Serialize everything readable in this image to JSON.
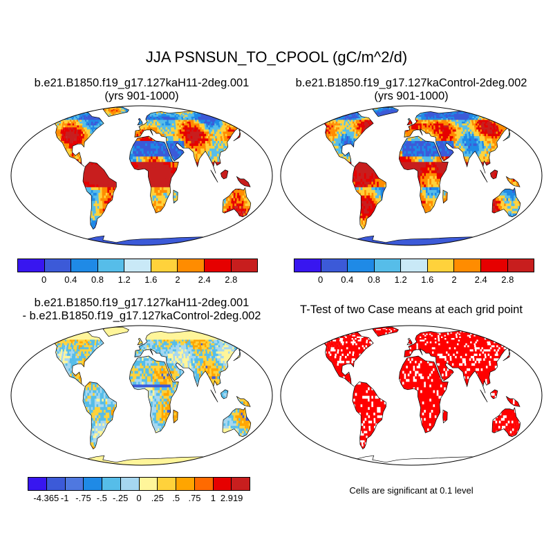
{
  "figure": {
    "title": "JJA PSNSUN_TO_CPOOL (gC/m^2/d)",
    "panels": [
      {
        "title": "b.e21.B1850.f19_g17.127kaH11-2deg.001",
        "subtitle": "(yrs 901-1000)",
        "kind": "mean",
        "ocean_color": "#ffffff",
        "antarctica_color": "#3c5ad8",
        "land_colors": [
          "#3c5ad8",
          "#1f8ae6",
          "#56bde9",
          "#ffd23b",
          "#ff8c00",
          "#e60000",
          "#c81e1e"
        ]
      },
      {
        "title": "b.e21.B1850.f19_g17.127kaControl-2deg.002",
        "subtitle": "(yrs 901-1000)",
        "kind": "mean",
        "ocean_color": "#ffffff",
        "antarctica_color": "#3c5ad8",
        "land_colors": [
          "#3c5ad8",
          "#1f8ae6",
          "#56bde9",
          "#ffd23b",
          "#ff8c00",
          "#e60000",
          "#c81e1e"
        ]
      },
      {
        "title": "b.e21.B1850.f19_g17.127kaH11-2deg.001",
        "subtitle": "- b.e21.B1850.f19_g17.127kaControl-2deg.002",
        "kind": "difference",
        "ocean_color": "#ffffff",
        "antarctica_color": "#fff59a",
        "land_colors": [
          "#fff59a",
          "#fff59a",
          "#a6d7f0",
          "#56bde9",
          "#ffd23b",
          "#ffa500",
          "#3c5ad8"
        ]
      },
      {
        "title": "T-Test of two Case means at each grid point",
        "subtitle": "",
        "kind": "significance",
        "ocean_color": "#ffffff",
        "antarctica_color": "#ffffff",
        "land_colors": [
          "#ff0000",
          "#ff0000",
          "#ff0000",
          "#ff0000",
          "#ffffff"
        ]
      }
    ],
    "colorbars": [
      {
        "colors": [
          "#3816f0",
          "#3c5ad8",
          "#1f8ae6",
          "#56bde9",
          "#c9e9f7",
          "#ffd23b",
          "#ff8c00",
          "#e60000",
          "#c81e1e"
        ],
        "labels": [
          "0",
          "0.4",
          "0.8",
          "1.2",
          "1.6",
          "2",
          "2.4",
          "2.8"
        ]
      },
      {
        "colors": [
          "#3816f0",
          "#3c5ad8",
          "#1f8ae6",
          "#56bde9",
          "#c9e9f7",
          "#ffd23b",
          "#ff8c00",
          "#e60000",
          "#c81e1e"
        ],
        "labels": [
          "0",
          "0.4",
          "0.8",
          "1.2",
          "1.6",
          "2",
          "2.4",
          "2.8"
        ]
      },
      {
        "colors": [
          "#3816f0",
          "#3c5ad8",
          "#4f78e0",
          "#1f8ae6",
          "#56bde9",
          "#a6d7f0",
          "#fff59a",
          "#ffd23b",
          "#ffa500",
          "#ff6a00",
          "#e60000",
          "#c81e1e"
        ],
        "labels": [
          "-4.365",
          "-1",
          "-.75",
          "-.5",
          "-.25",
          "0",
          ".25",
          ".5",
          ".75",
          "1",
          "2.919"
        ]
      }
    ],
    "significance_note": "Cells are significant at 0.1 level"
  }
}
